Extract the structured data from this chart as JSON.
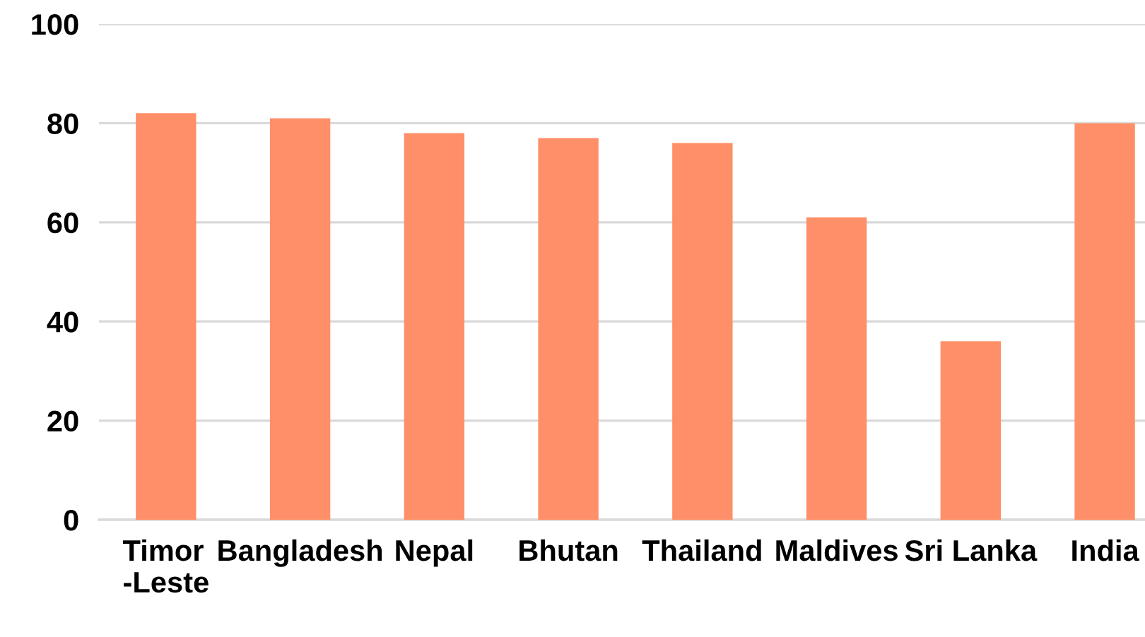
{
  "chart_data": {
    "type": "bar",
    "categories": [
      "Timor\n-Leste",
      "Bangladesh",
      "Nepal",
      "Bhutan",
      "Thailand",
      "Maldives",
      "Sri Lanka",
      "India"
    ],
    "values": [
      82,
      81,
      78,
      77,
      76,
      61,
      36,
      80
    ],
    "color": "#ff8f68",
    "ylim": [
      0,
      100
    ],
    "yticks": [
      0,
      20,
      40,
      60,
      80,
      100
    ],
    "grid": "y"
  }
}
